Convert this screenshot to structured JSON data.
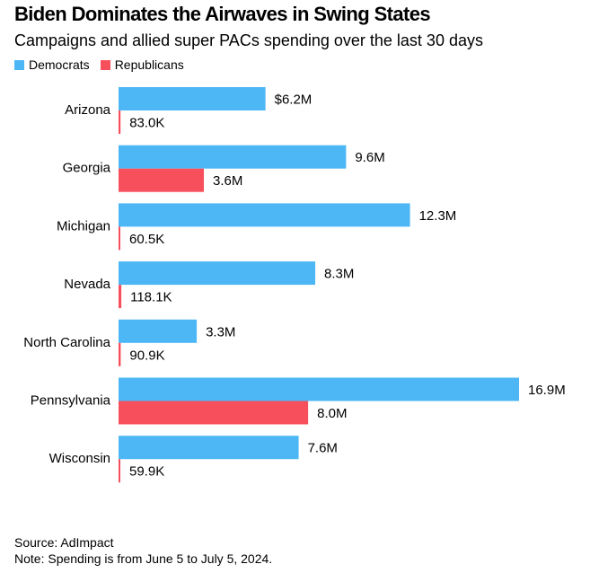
{
  "title": "Biden Dominates the Airwaves in Swing States",
  "subtitle": "Campaigns and allied super PACs spending over the last 30 days",
  "colors": {
    "democrats": "#4db7f5",
    "republicans": "#f74f5c"
  },
  "source": "Source: AdImpact",
  "note": "Note: Spending is from June 5 to July 5, 2024.",
  "chart_data": {
    "type": "bar",
    "orientation": "horizontal",
    "unit": "USD",
    "categories": [
      "Arizona",
      "Georgia",
      "Michigan",
      "Nevada",
      "North Carolina",
      "Pennsylvania",
      "Wisconsin"
    ],
    "series": [
      {
        "name": "Democrats",
        "values": [
          6200000,
          9600000,
          12300000,
          8300000,
          3300000,
          16900000,
          7600000
        ],
        "labels": [
          "$6.2M",
          "9.6M",
          "12.3M",
          "8.3M",
          "3.3M",
          "16.9M",
          "7.6M"
        ]
      },
      {
        "name": "Republicans",
        "values": [
          83000,
          3600000,
          60500,
          118100,
          90900,
          8000000,
          59900
        ],
        "labels": [
          "83.0K",
          "3.6M",
          "60.5K",
          "118.1K",
          "90.9K",
          "8.0M",
          "59.9K"
        ]
      }
    ],
    "xlim": [
      0,
      16900000
    ],
    "legend": "top-left",
    "grid": false
  }
}
